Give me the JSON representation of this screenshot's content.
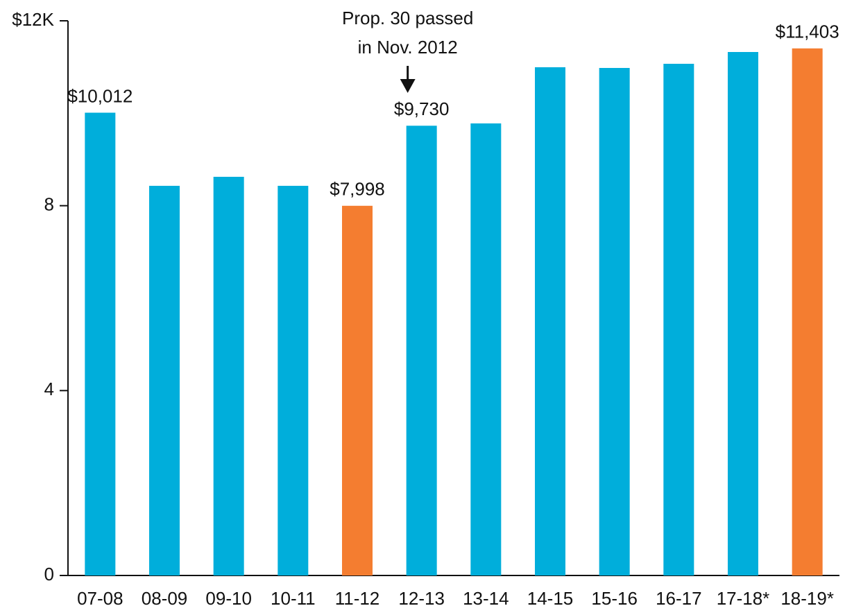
{
  "chart_data": {
    "type": "bar",
    "annotation": [
      "Prop. 30 passed",
      "in Nov. 2012"
    ],
    "annotation_category": "12-13",
    "categories": [
      "07-08",
      "08-09",
      "09-10",
      "10-11",
      "11-12",
      "12-13",
      "13-14",
      "14-15",
      "15-16",
      "16-17",
      "17-18*",
      "18-19*"
    ],
    "values": [
      10012,
      8430,
      8625,
      8430,
      7998,
      9730,
      9780,
      10995,
      10980,
      11070,
      11325,
      11403
    ],
    "value_labels": [
      "$10,012",
      null,
      null,
      null,
      "$7,998",
      "$9,730",
      null,
      null,
      null,
      null,
      null,
      "$11,403"
    ],
    "colors": [
      "#00aedb",
      "#00aedb",
      "#00aedb",
      "#00aedb",
      "#f47d30",
      "#00aedb",
      "#00aedb",
      "#00aedb",
      "#00aedb",
      "#00aedb",
      "#00aedb",
      "#f47d30"
    ],
    "ylim": [
      0,
      12000
    ],
    "yticks": [
      0,
      {
        "value": 4000,
        "label": "4"
      },
      {
        "value": 8000,
        "label": "8"
      },
      {
        "value": 12000,
        "label": "$12K"
      }
    ],
    "grid": false
  }
}
